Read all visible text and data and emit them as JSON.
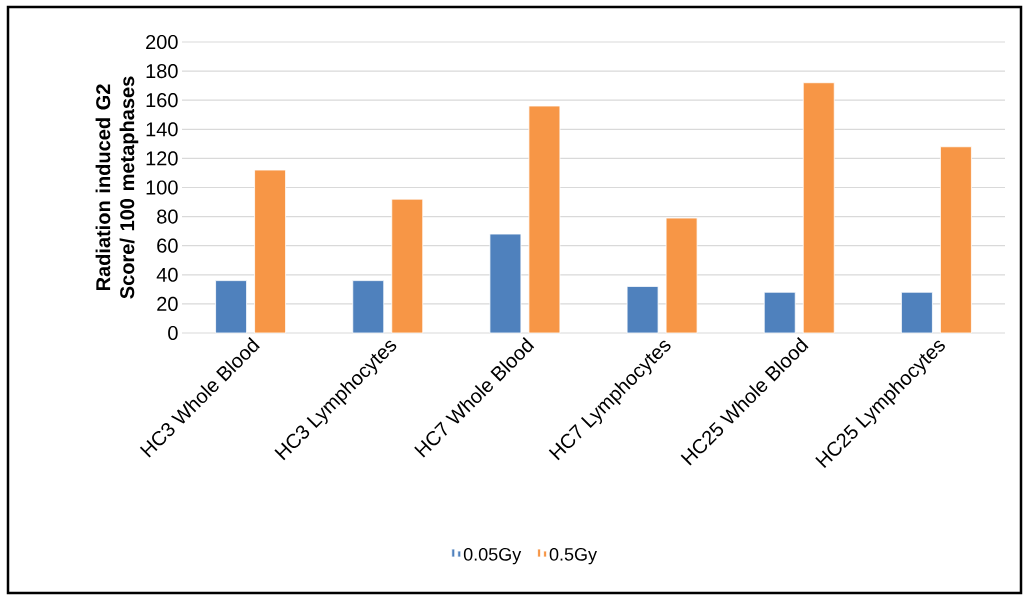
{
  "chart_data": {
    "type": "bar",
    "ylabel": "Radiation induced G2 Score/ 100 metaphases",
    "categories": [
      "HC3 Whole Blood",
      "HC3 Lymphocytes",
      "HC7 Whole Blood",
      "HC7 Lymphocytes",
      "HC25 Whole Blood",
      "HC25 Lymphocytes"
    ],
    "series": [
      {
        "name": "0.05Gy",
        "color": "#4f81bd",
        "values": [
          36,
          36,
          68,
          32,
          28,
          28
        ]
      },
      {
        "name": "0.5Gy",
        "color": "#f79646",
        "values": [
          112,
          92,
          156,
          79,
          172,
          128
        ]
      }
    ],
    "ylim": [
      0,
      200
    ],
    "yticks": [
      0,
      20,
      40,
      60,
      80,
      100,
      120,
      140,
      160,
      180,
      200
    ],
    "grid": "y",
    "legend": "bottom"
  }
}
